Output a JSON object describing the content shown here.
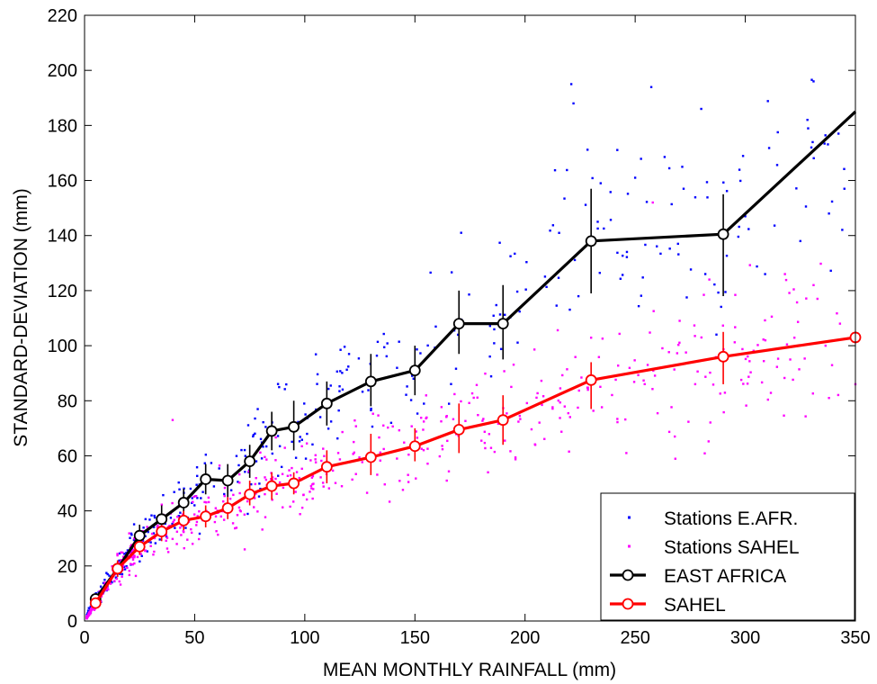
{
  "chart_data": {
    "type": "line",
    "xlabel": "MEAN MONTHLY RAINFALL (mm)",
    "ylabel": "STANDARD-DEVIATION (mm)",
    "xlim": [
      0,
      350
    ],
    "ylim": [
      0,
      220
    ],
    "xticks": [
      0,
      50,
      100,
      150,
      200,
      250,
      300,
      350
    ],
    "yticks": [
      0,
      20,
      40,
      60,
      80,
      100,
      120,
      140,
      160,
      180,
      200,
      220
    ],
    "grid": false,
    "legend_position": "bottom-right",
    "legend": [
      {
        "label": "Stations E.AFR.",
        "kind": "dots",
        "color": "#0000ff"
      },
      {
        "label": "Stations SAHEL",
        "kind": "dots",
        "color": "#ff00ff"
      },
      {
        "label": "EAST AFRICA",
        "kind": "line-marker",
        "color": "#000000"
      },
      {
        "label": "SAHEL",
        "kind": "line-marker",
        "color": "#ff0000"
      }
    ],
    "series": [
      {
        "name": "EAST AFRICA",
        "color": "#000000",
        "points": [
          {
            "x": 5,
            "y": 8,
            "lo": 6,
            "hi": 10
          },
          {
            "x": 15,
            "y": 19,
            "lo": 16,
            "hi": 22
          },
          {
            "x": 25,
            "y": 31,
            "lo": 27,
            "hi": 35
          },
          {
            "x": 35,
            "y": 37,
            "lo": 33,
            "hi": 42
          },
          {
            "x": 45,
            "y": 43,
            "lo": 38,
            "hi": 48
          },
          {
            "x": 55,
            "y": 51.5,
            "lo": 46,
            "hi": 57
          },
          {
            "x": 65,
            "y": 51,
            "lo": 45,
            "hi": 57
          },
          {
            "x": 75,
            "y": 58,
            "lo": 52,
            "hi": 64
          },
          {
            "x": 85,
            "y": 69,
            "lo": 62,
            "hi": 76
          },
          {
            "x": 95,
            "y": 70.5,
            "lo": 62,
            "hi": 80
          },
          {
            "x": 110,
            "y": 79,
            "lo": 71,
            "hi": 87
          },
          {
            "x": 130,
            "y": 87,
            "lo": 78,
            "hi": 97
          },
          {
            "x": 150,
            "y": 91,
            "lo": 82,
            "hi": 100
          },
          {
            "x": 170,
            "y": 108,
            "lo": 97,
            "hi": 120
          },
          {
            "x": 190,
            "y": 108,
            "lo": 95,
            "hi": 122
          },
          {
            "x": 230,
            "y": 138,
            "lo": 119,
            "hi": 157
          },
          {
            "x": 290,
            "y": 140.5,
            "lo": 118,
            "hi": 155
          },
          {
            "x": 350,
            "y": 185
          }
        ]
      },
      {
        "name": "SAHEL",
        "color": "#ff0000",
        "points": [
          {
            "x": 5,
            "y": 6.5,
            "lo": 5,
            "hi": 8
          },
          {
            "x": 15,
            "y": 19,
            "lo": 16,
            "hi": 22
          },
          {
            "x": 25,
            "y": 27,
            "lo": 24,
            "hi": 30
          },
          {
            "x": 35,
            "y": 32.5,
            "lo": 29,
            "hi": 36
          },
          {
            "x": 45,
            "y": 36.5,
            "lo": 33,
            "hi": 40
          },
          {
            "x": 55,
            "y": 38,
            "lo": 34,
            "hi": 42
          },
          {
            "x": 65,
            "y": 41,
            "lo": 37,
            "hi": 45
          },
          {
            "x": 75,
            "y": 46,
            "lo": 42,
            "hi": 51
          },
          {
            "x": 85,
            "y": 49,
            "lo": 44,
            "hi": 54
          },
          {
            "x": 95,
            "y": 50,
            "lo": 46,
            "hi": 54
          },
          {
            "x": 110,
            "y": 56,
            "lo": 50,
            "hi": 62
          },
          {
            "x": 130,
            "y": 59.5,
            "lo": 53,
            "hi": 68
          },
          {
            "x": 150,
            "y": 63.5,
            "lo": 58,
            "hi": 70
          },
          {
            "x": 170,
            "y": 69.5,
            "lo": 61,
            "hi": 79
          },
          {
            "x": 190,
            "y": 73,
            "lo": 64,
            "hi": 82
          },
          {
            "x": 230,
            "y": 87.5,
            "lo": 77,
            "hi": 94
          },
          {
            "x": 290,
            "y": 96,
            "lo": 86,
            "hi": 105
          },
          {
            "x": 350,
            "y": 103
          }
        ]
      }
    ],
    "scatter": [
      {
        "name": "Stations E.AFR.",
        "color": "#0000ff",
        "count": 420,
        "seed": 11,
        "x_range": [
          1,
          345
        ],
        "outliers": [
          [
            221,
            195
          ],
          [
            222,
            188
          ],
          [
            331,
            196
          ],
          [
            250,
            161
          ],
          [
            280,
            186
          ],
          [
            272,
            157
          ],
          [
            345,
            157
          ],
          [
            309,
            126
          ],
          [
            325,
            138
          ],
          [
            330,
            172
          ],
          [
            233,
            145
          ],
          [
            338,
            148
          ],
          [
            300,
            147
          ],
          [
            171,
            141
          ]
        ]
      },
      {
        "name": "Stations SAHEL",
        "color": "#ff00ff",
        "count": 620,
        "seed": 29,
        "x_range": [
          1,
          350
        ],
        "outliers": [
          [
            40,
            73
          ],
          [
            258,
            152
          ],
          [
            331,
            122
          ],
          [
            318,
            126
          ],
          [
            343,
            108
          ],
          [
            338,
            81
          ],
          [
            350,
            86
          ],
          [
            246,
            61
          ],
          [
            268,
            67
          ]
        ]
      }
    ]
  }
}
